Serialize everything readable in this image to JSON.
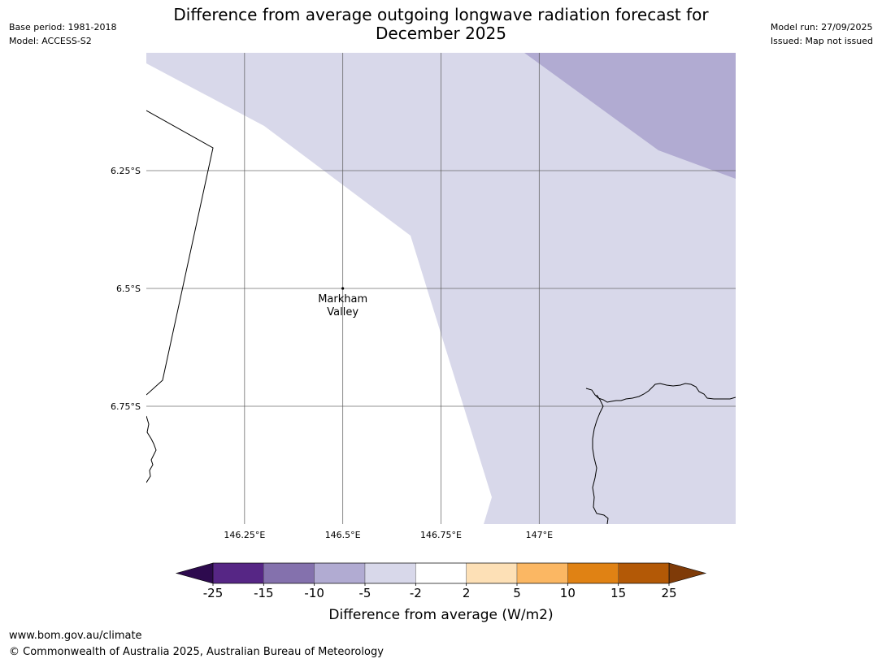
{
  "header": {
    "base_period": "Base period: 1981-2018",
    "model": "Model: ACCESS-S2",
    "model_run": "Model run: 27/09/2025",
    "issued": "Issued: Map not issued",
    "title_line1": "Difference from average outgoing longwave radiation forecast for",
    "title_line2": "December 2025"
  },
  "map": {
    "extent": {
      "lon_min": 146.0,
      "lon_max": 147.5,
      "lat_min": -7.0,
      "lat_max": -6.0
    },
    "lat_lines": [
      -6.25,
      -6.5,
      -6.75
    ],
    "lon_lines": [
      146.25,
      146.5,
      146.75,
      147.0
    ],
    "lat_labels": [
      "6.25°S",
      "6.5°S",
      "6.75°S"
    ],
    "lon_labels": [
      "146.25°E",
      "146.5°E",
      "146.75°E",
      "147°E"
    ],
    "place": {
      "name_line1": "Markham",
      "name_line2": "Valley",
      "lon": 146.5,
      "lat": -6.5
    },
    "field_colors": {
      "-5to-2": "#d8d8ea",
      "-10to-5": "#b1abd2"
    }
  },
  "colorbar": {
    "ticks": [
      "-25",
      "-15",
      "-10",
      "-5",
      "-2",
      "2",
      "5",
      "10",
      "15",
      "25"
    ],
    "colors": [
      "#562685",
      "#8471ad",
      "#b1abd2",
      "#d8d8ea",
      "#ffffff",
      "#fde0b6",
      "#fbb763",
      "#e08214",
      "#b35906"
    ],
    "under_color": "#2d0a4e",
    "over_color": "#7f3b08",
    "label": "Difference from average (W/m2)"
  },
  "footer": {
    "url": "www.bom.gov.au/climate",
    "copyright": "© Commonwealth of Australia 2025, Australian Bureau of Meteorology"
  }
}
